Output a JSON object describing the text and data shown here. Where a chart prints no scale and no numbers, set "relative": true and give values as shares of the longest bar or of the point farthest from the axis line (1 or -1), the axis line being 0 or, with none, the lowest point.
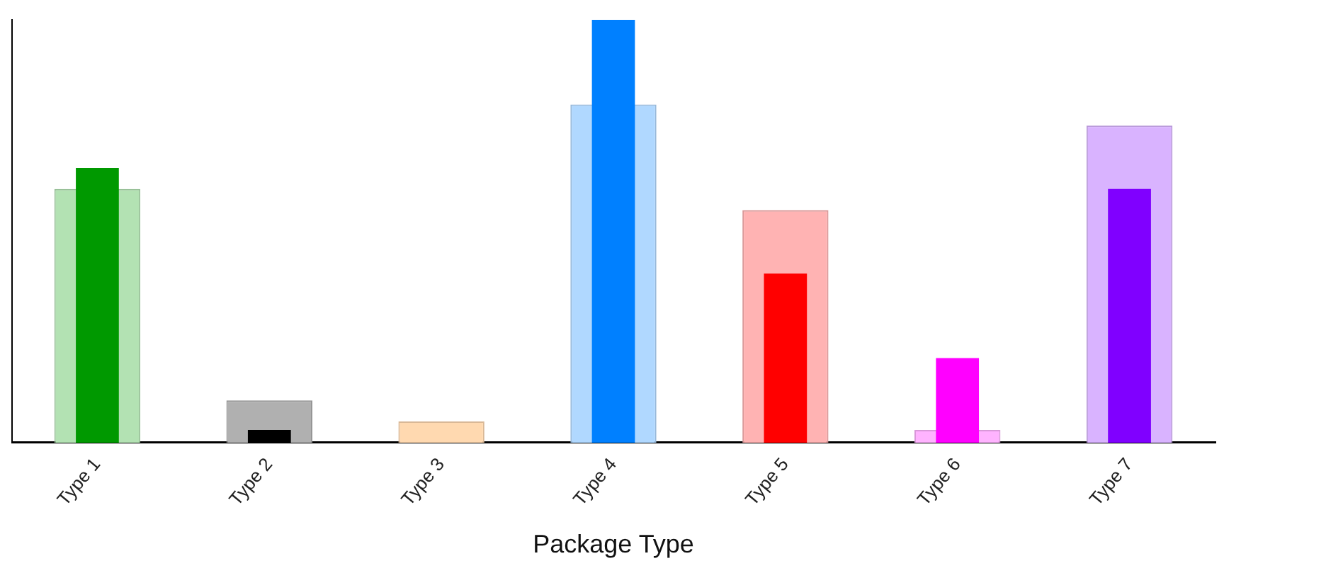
{
  "chart_data": {
    "type": "bar",
    "xlabel": "Package Type",
    "relative": true,
    "grid": false,
    "legend": false,
    "categories": [
      "Type 1",
      "Type 2",
      "Type 3",
      "Type 4",
      "Type 5",
      "Type 6",
      "Type 7"
    ],
    "series": [
      {
        "colors": [
          "#b3e2b3",
          "#b0b0b0",
          "#ffd9b0",
          "#b0d8ff",
          "#ffb3b3",
          "#ffb3ff",
          "#d9b3ff"
        ],
        "values": [
          0.6,
          0.1,
          0.05,
          0.8,
          0.55,
          0.03,
          0.75
        ]
      },
      {
        "colors": [
          "#009900",
          "#000000",
          "#ff8c00",
          "#0080ff",
          "#ff0000",
          "#ff00ff",
          "#8000ff"
        ],
        "values": [
          0.65,
          0.03,
          0,
          1,
          0.4,
          0.2,
          0.6
        ]
      }
    ]
  }
}
